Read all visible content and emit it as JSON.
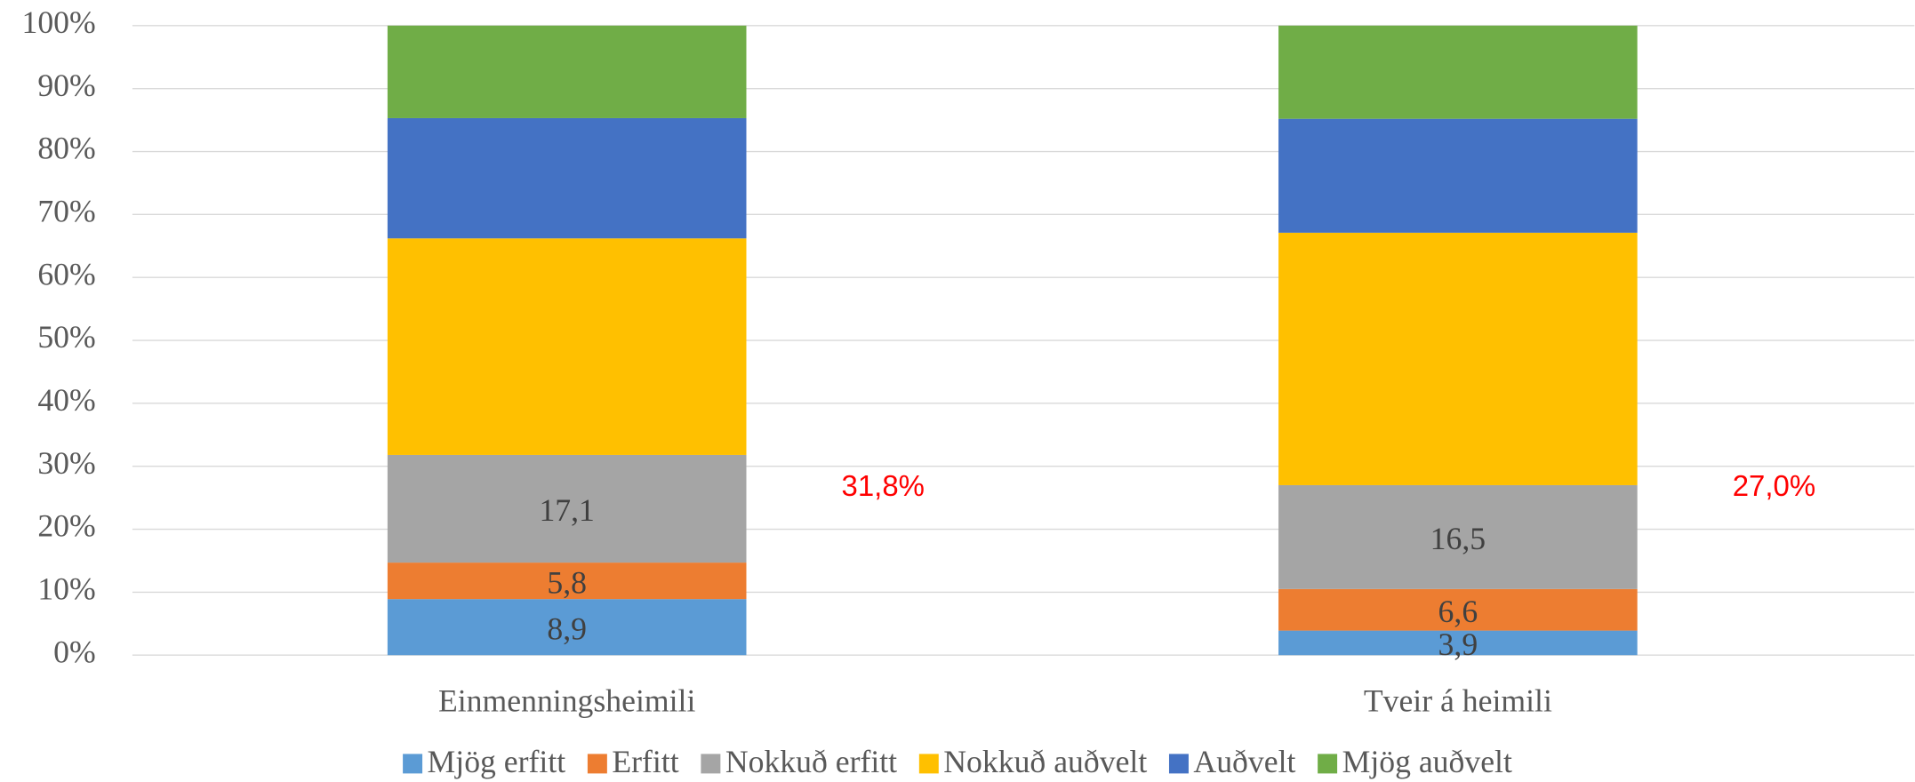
{
  "chart_data": {
    "type": "stacked_bar",
    "categories": [
      "Einmenningsheimili",
      "Tveir á heimili"
    ],
    "series": [
      {
        "name": "Mjög erfitt",
        "color": "#5b9bd5",
        "values": [
          8.9,
          3.9
        ],
        "value_labels": [
          "8,9",
          "3,9"
        ]
      },
      {
        "name": "Erfitt",
        "color": "#ed7d31",
        "values": [
          5.8,
          6.6
        ],
        "value_labels": [
          "5,8",
          "6,6"
        ]
      },
      {
        "name": "Nokkuð erfitt",
        "color": "#a5a5a5",
        "values": [
          17.1,
          16.5
        ],
        "value_labels": [
          "17,1",
          "16,5"
        ]
      },
      {
        "name": "Nokkuð auðvelt",
        "color": "#ffc000",
        "values": [
          34.4,
          40.1
        ]
      },
      {
        "name": "Auðvelt",
        "color": "#4472c4",
        "values": [
          19.1,
          18.1
        ]
      },
      {
        "name": "Mjög auðvelt",
        "color": "#70ad47",
        "values": [
          14.7,
          14.8
        ]
      }
    ],
    "annotations": [
      "31,8%",
      "27,0%"
    ],
    "ylim": [
      0,
      100
    ],
    "yticks": [
      {
        "value": 0,
        "label": "0%"
      },
      {
        "value": 10,
        "label": "10%"
      },
      {
        "value": 20,
        "label": "20%"
      },
      {
        "value": 30,
        "label": "30%"
      },
      {
        "value": 40,
        "label": "40%"
      },
      {
        "value": 50,
        "label": "50%"
      },
      {
        "value": 60,
        "label": "60%"
      },
      {
        "value": 70,
        "label": "70%"
      },
      {
        "value": 80,
        "label": "80%"
      },
      {
        "value": 90,
        "label": "90%"
      },
      {
        "value": 100,
        "label": "100%"
      }
    ],
    "grid": true,
    "legend": "bottom"
  }
}
